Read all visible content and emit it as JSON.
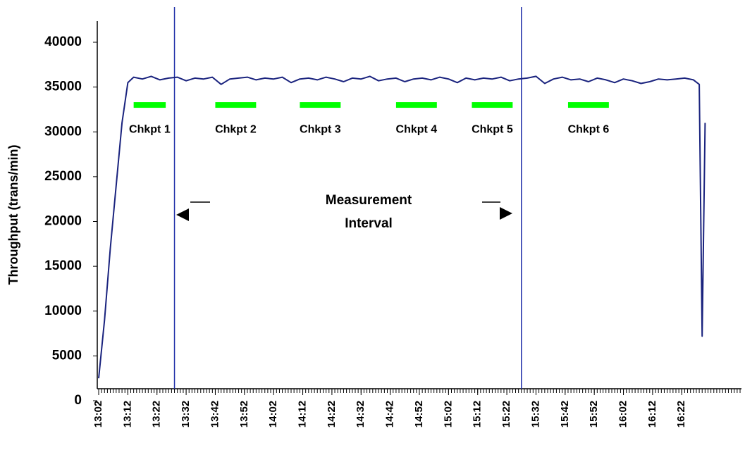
{
  "chart_data": {
    "type": "line",
    "y_label": "Throughput (trans/min)",
    "annotation": [
      "Measurement",
      "Interval"
    ],
    "xlim": [
      "13:02",
      "16:42"
    ],
    "xticks": [
      "13:02",
      "13:12",
      "13:22",
      "13:32",
      "13:42",
      "13:52",
      "14:02",
      "14:12",
      "14:22",
      "14:32",
      "14:42",
      "14:52",
      "15:02",
      "15:12",
      "15:22",
      "15:32",
      "15:42",
      "15:52",
      "16:02",
      "16:12",
      "16:22"
    ],
    "ylim": [
      0,
      40000
    ],
    "yticks": [
      0,
      5000,
      10000,
      15000,
      20000,
      25000,
      30000,
      35000,
      40000
    ],
    "interval_lines": [
      "13:28",
      "15:27"
    ],
    "checkpoint_level": 33000,
    "checkpoint_color": "#00ff00",
    "checkpoints": [
      {
        "label": "Chkpt 1",
        "start": "13:14",
        "end": "13:25"
      },
      {
        "label": "Chkpt 2",
        "start": "13:42",
        "end": "13:56"
      },
      {
        "label": "Chkpt 3",
        "start": "14:11",
        "end": "14:25"
      },
      {
        "label": "Chkpt 4",
        "start": "14:44",
        "end": "14:58"
      },
      {
        "label": "Chkpt 5",
        "start": "15:10",
        "end": "15:24"
      },
      {
        "label": "Chkpt 6",
        "start": "15:43",
        "end": "15:57"
      }
    ],
    "series": [
      {
        "color": "#1a237e",
        "x": [
          "13:02",
          "13:04",
          "13:06",
          "13:08",
          "13:10",
          "13:12",
          "13:14",
          "13:17",
          "13:20",
          "13:23",
          "13:26",
          "13:29",
          "13:32",
          "13:35",
          "13:38",
          "13:41",
          "13:44",
          "13:47",
          "13:50",
          "13:53",
          "13:56",
          "13:59",
          "14:02",
          "14:05",
          "14:08",
          "14:11",
          "14:14",
          "14:17",
          "14:20",
          "14:23",
          "14:26",
          "14:29",
          "14:32",
          "14:35",
          "14:38",
          "14:41",
          "14:44",
          "14:47",
          "14:50",
          "14:53",
          "14:56",
          "14:59",
          "15:02",
          "15:05",
          "15:08",
          "15:11",
          "15:14",
          "15:17",
          "15:20",
          "15:23",
          "15:26",
          "15:29",
          "15:32",
          "15:35",
          "15:38",
          "15:41",
          "15:44",
          "15:47",
          "15:50",
          "15:53",
          "15:56",
          "15:59",
          "16:02",
          "16:05",
          "16:08",
          "16:11",
          "16:14",
          "16:17",
          "16:20",
          "16:23",
          "16:26",
          "16:28",
          "16:29",
          "16:30"
        ],
        "values": [
          2500,
          9000,
          17000,
          24000,
          31000,
          35500,
          36100,
          35900,
          36200,
          35800,
          36000,
          36100,
          35700,
          36000,
          35900,
          36100,
          35300,
          35900,
          36000,
          36100,
          35800,
          36000,
          35900,
          36100,
          35500,
          35900,
          36000,
          35800,
          36100,
          35900,
          35600,
          36000,
          35900,
          36200,
          35700,
          35900,
          36000,
          35600,
          35900,
          36000,
          35800,
          36100,
          35900,
          35500,
          36000,
          35800,
          36000,
          35900,
          36100,
          35700,
          35900,
          36000,
          36200,
          35400,
          35900,
          36100,
          35800,
          35900,
          35600,
          36000,
          35800,
          35500,
          35900,
          35700,
          35400,
          35600,
          35900,
          35800,
          35900,
          36000,
          35800,
          35300,
          7200,
          31000
        ]
      }
    ]
  }
}
